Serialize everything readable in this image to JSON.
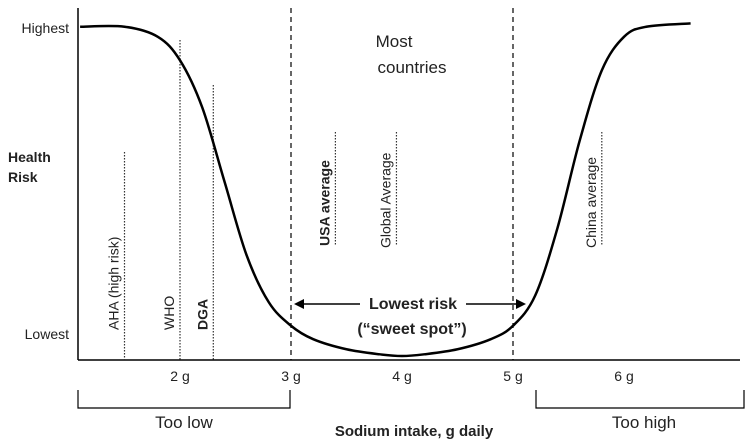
{
  "chart_data": {
    "type": "line",
    "title": "",
    "xlabel": "Sodium intake, g daily",
    "ylabel": "Health Risk",
    "y_ticks": [
      "Highest",
      "Lowest"
    ],
    "x_ticks": [
      "2 g",
      "3 g",
      "4 g",
      "5 g",
      "6 g"
    ],
    "x_tick_values": [
      2,
      3,
      4,
      5,
      6
    ],
    "xlim": [
      1.0,
      6.8
    ],
    "ylim": [
      0,
      1
    ],
    "grid": false,
    "curve": {
      "x": [
        1.1,
        1.5,
        1.8,
        2.0,
        2.2,
        2.4,
        2.6,
        2.8,
        3.0,
        3.2,
        3.5,
        3.8,
        4.0,
        4.2,
        4.5,
        4.8,
        5.0,
        5.2,
        5.4,
        5.6,
        5.8,
        6.0,
        6.2,
        6.6
      ],
      "y": [
        0.98,
        0.98,
        0.95,
        0.88,
        0.74,
        0.52,
        0.3,
        0.16,
        0.09,
        0.05,
        0.02,
        0.005,
        0.0,
        0.005,
        0.02,
        0.05,
        0.09,
        0.18,
        0.38,
        0.64,
        0.85,
        0.95,
        0.98,
        0.99
      ]
    },
    "reference_lines": [
      {
        "label": "AHA (high risk)",
        "x": 1.5,
        "style": "dotted",
        "bold": false
      },
      {
        "label": "WHO",
        "x": 2.0,
        "style": "dotted",
        "bold": false
      },
      {
        "label": "DGA",
        "x": 2.3,
        "style": "dotted",
        "bold": true
      },
      {
        "label": "USA average",
        "x": 3.4,
        "style": "dotted",
        "bold": true
      },
      {
        "label": "Global Average",
        "x": 3.95,
        "style": "dotted",
        "bold": false
      },
      {
        "label": "China average",
        "x": 5.8,
        "style": "dotted",
        "bold": false
      }
    ],
    "dashed_lines": [
      3,
      5
    ],
    "annotations": {
      "most_countries": [
        "Most",
        "countries"
      ],
      "lowest_risk": "Lowest risk",
      "sweet_spot": "(“sweet spot”)",
      "too_low": "Too low",
      "too_high": "Too high"
    },
    "colors": {
      "curve": "#000000",
      "text": "#222222",
      "axis": "#000000"
    }
  }
}
